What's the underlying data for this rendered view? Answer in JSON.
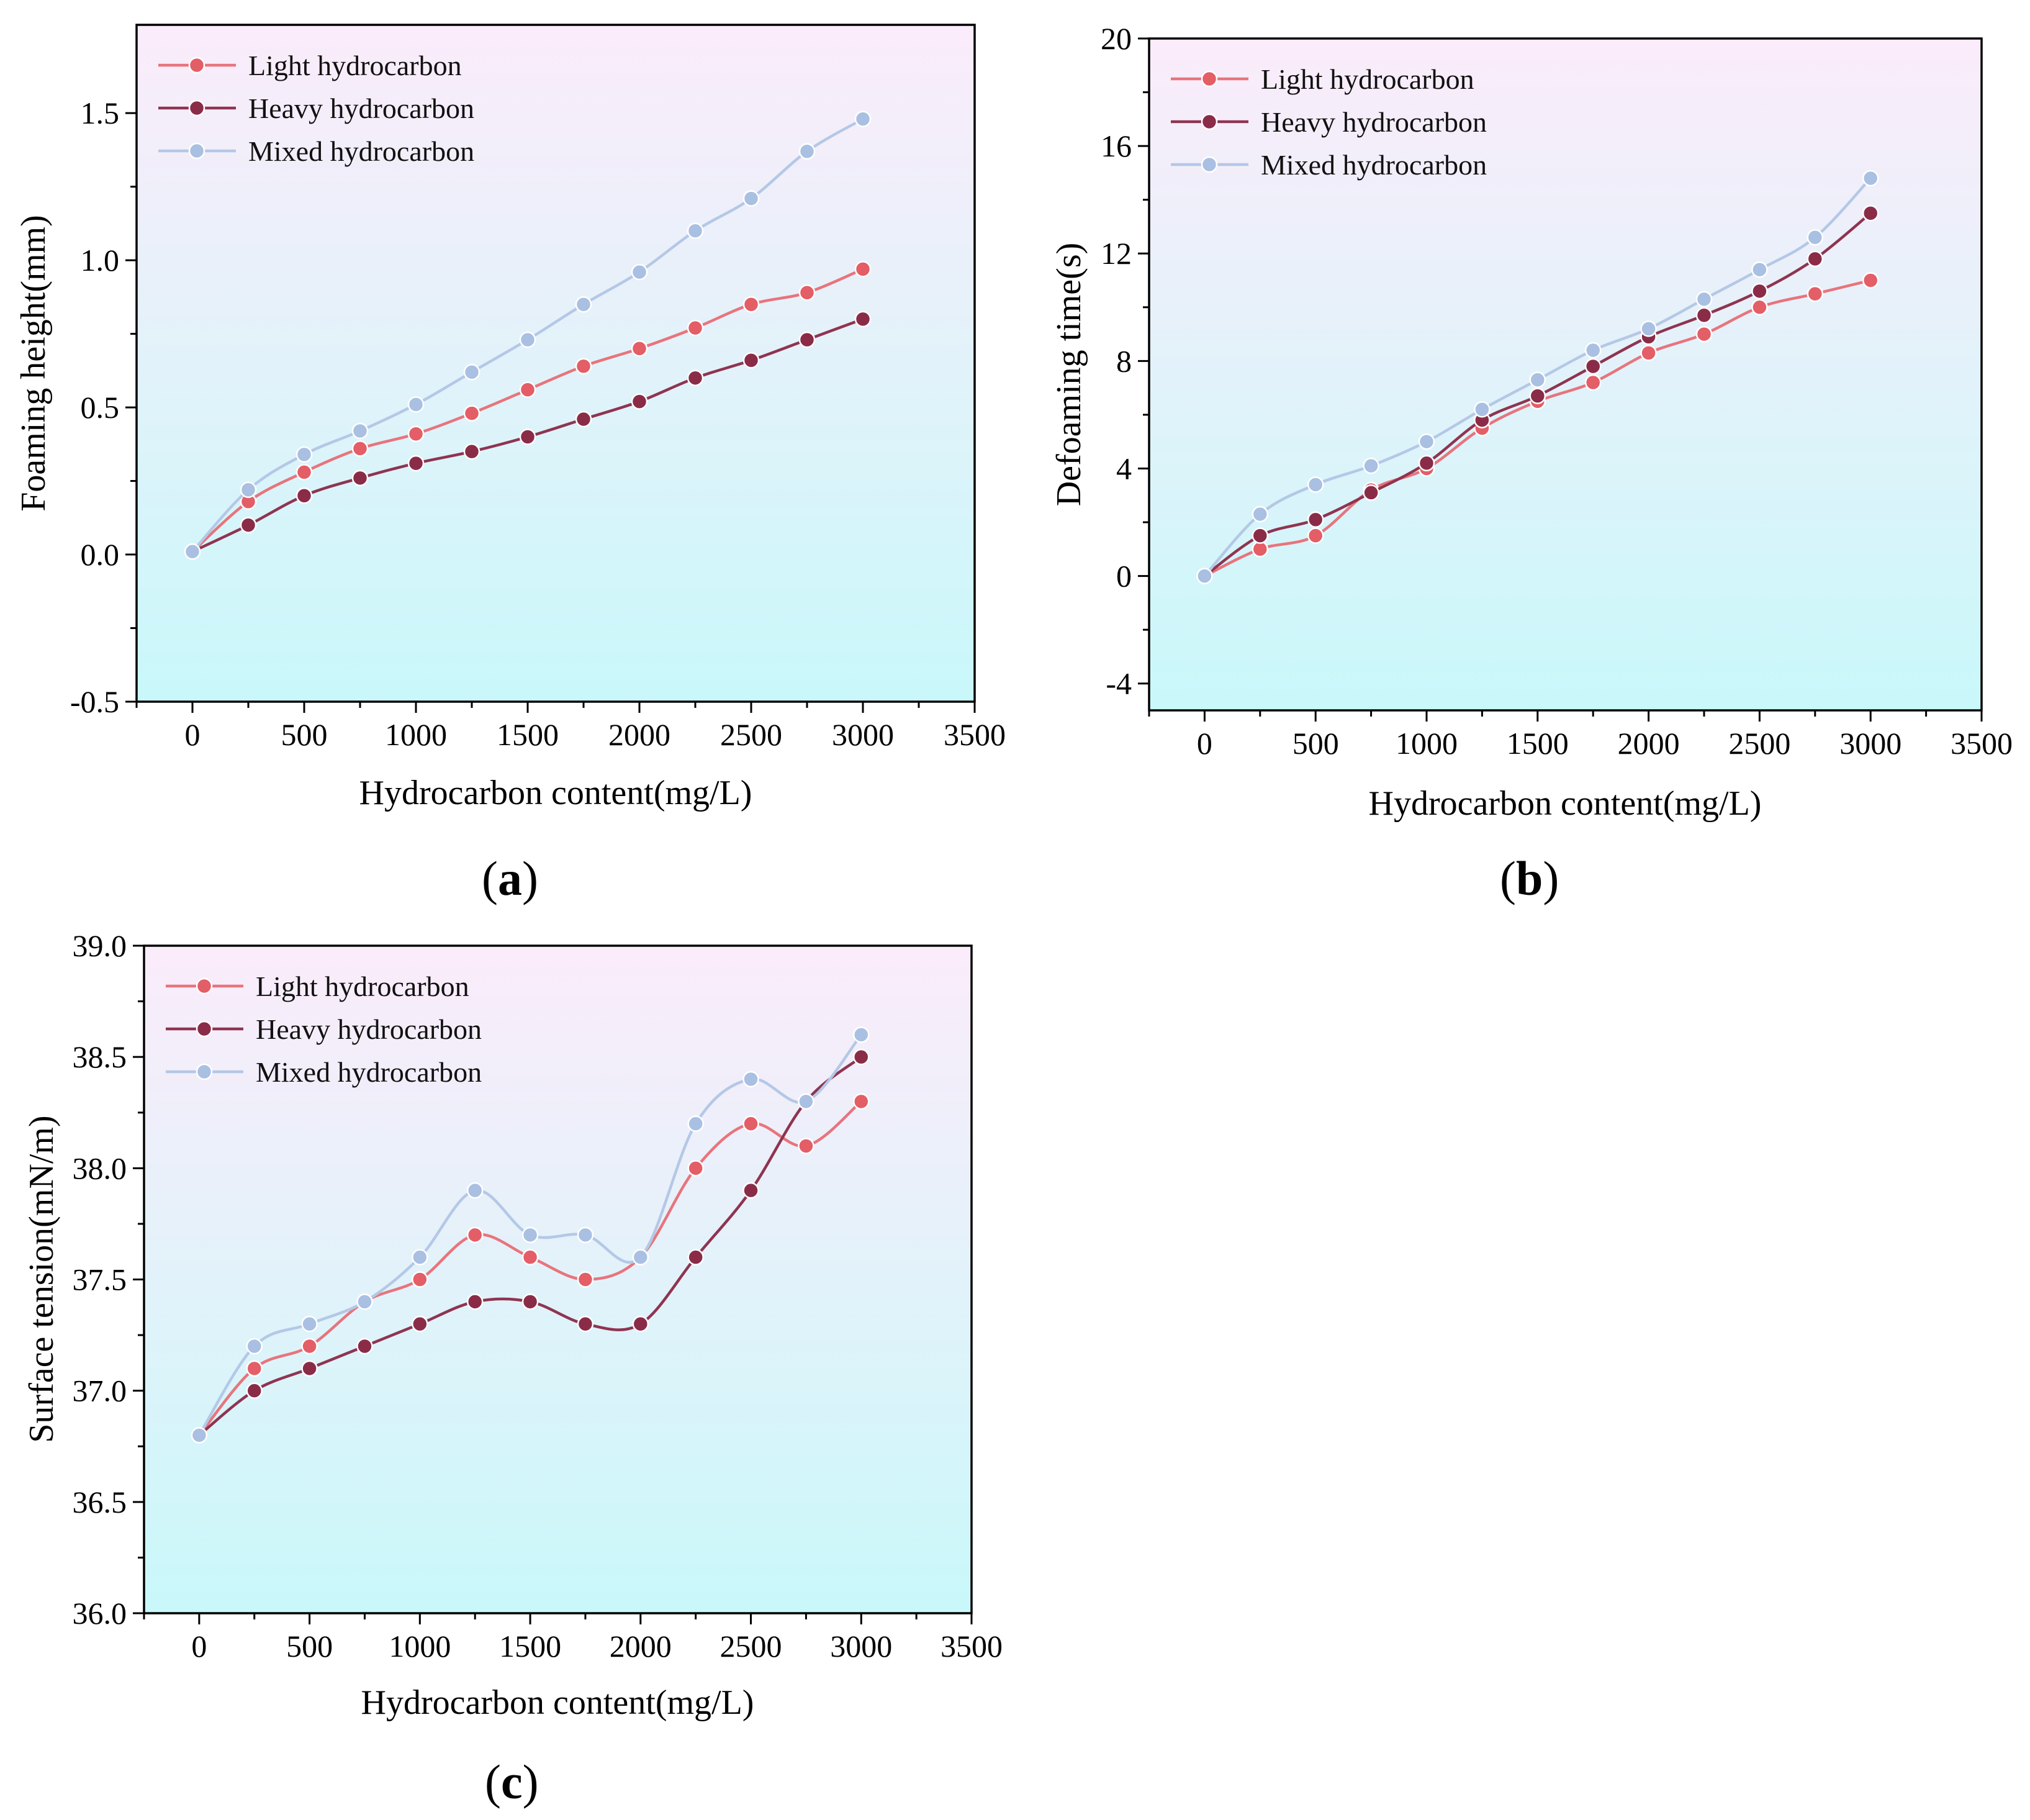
{
  "figure": {
    "panel_labels": {
      "a": "a",
      "b": "b",
      "c": "c"
    }
  },
  "series_styles": {
    "Light hydrocarbon": {
      "line": "#e8747c",
      "marker": "#e35e66"
    },
    "Heavy hydrocarbon": {
      "line": "#8f3450",
      "marker": "#8a2c48"
    },
    "Mixed hydrocarbon": {
      "line": "#b4c8e6",
      "marker": "#a9c0e2"
    }
  },
  "background": {
    "top": "#fbecfa",
    "bottom": "#c9f8fa"
  },
  "chart_data": [
    {
      "id": "a",
      "type": "line",
      "xlabel": "Hydrocarbon content(mg/L)",
      "ylabel": "Foaming height(mm)",
      "xlim": [
        -250,
        3500
      ],
      "ylim": [
        -0.5,
        1.8
      ],
      "xticks": [
        0,
        500,
        1000,
        1500,
        2000,
        2500,
        3000,
        3500
      ],
      "xtick_labels": [
        "0",
        "500",
        "1000",
        "1500",
        "2000",
        "2500",
        "3000",
        "3500"
      ],
      "yticks": [
        -0.5,
        0.0,
        0.5,
        1.0,
        1.5
      ],
      "ytick_labels": [
        "-0.5",
        "0.0",
        "0.5",
        "1.0",
        "1.5"
      ],
      "x": [
        0,
        250,
        500,
        750,
        1000,
        1250,
        1500,
        1750,
        2000,
        2250,
        2500,
        2750,
        3000
      ],
      "legend": "top-left",
      "series": [
        {
          "name": "Light hydrocarbon",
          "values": [
            0.01,
            0.18,
            0.28,
            0.36,
            0.41,
            0.48,
            0.56,
            0.64,
            0.7,
            0.77,
            0.85,
            0.89,
            0.97
          ]
        },
        {
          "name": "Heavy hydrocarbon",
          "values": [
            0.01,
            0.1,
            0.2,
            0.26,
            0.31,
            0.35,
            0.4,
            0.46,
            0.52,
            0.6,
            0.66,
            0.73,
            0.8
          ]
        },
        {
          "name": "Mixed hydrocarbon",
          "values": [
            0.01,
            0.22,
            0.34,
            0.42,
            0.51,
            0.62,
            0.73,
            0.85,
            0.96,
            1.1,
            1.21,
            1.37,
            1.48
          ]
        }
      ]
    },
    {
      "id": "b",
      "type": "line",
      "xlabel": "Hydrocarbon content(mg/L)",
      "ylabel": "Defoaming time(s)",
      "xlim": [
        -250,
        3500
      ],
      "ylim": [
        -5,
        20
      ],
      "xticks": [
        0,
        500,
        1000,
        1500,
        2000,
        2500,
        3000,
        3500
      ],
      "xtick_labels": [
        "0",
        "500",
        "1000",
        "1500",
        "2000",
        "2500",
        "3000",
        "3500"
      ],
      "yticks": [
        -4,
        0,
        4,
        8,
        12,
        16,
        20
      ],
      "ytick_labels": [
        "-4",
        "0",
        "4",
        "8",
        "12",
        "16",
        "20"
      ],
      "x": [
        0,
        250,
        500,
        750,
        1000,
        1250,
        1500,
        1750,
        2000,
        2250,
        2500,
        2750,
        3000
      ],
      "legend": "top-left",
      "series": [
        {
          "name": "Light hydrocarbon",
          "values": [
            0,
            1.0,
            1.5,
            3.2,
            4.0,
            5.5,
            6.5,
            7.2,
            8.3,
            9.0,
            10.0,
            10.5,
            11.0
          ]
        },
        {
          "name": "Heavy hydrocarbon",
          "values": [
            0,
            1.5,
            2.1,
            3.1,
            4.2,
            5.8,
            6.7,
            7.8,
            8.9,
            9.7,
            10.6,
            11.8,
            13.5
          ]
        },
        {
          "name": "Mixed hydrocarbon",
          "values": [
            0,
            2.3,
            3.4,
            4.1,
            5.0,
            6.2,
            7.3,
            8.4,
            9.2,
            10.3,
            11.4,
            12.6,
            14.8
          ]
        }
      ]
    },
    {
      "id": "c",
      "type": "line",
      "xlabel": "Hydrocarbon content(mg/L)",
      "ylabel": "Surface tension(mN/m)",
      "xlim": [
        -250,
        3500
      ],
      "ylim": [
        36.0,
        39.0
      ],
      "xticks": [
        0,
        500,
        1000,
        1500,
        2000,
        2500,
        3000,
        3500
      ],
      "xtick_labels": [
        "0",
        "500",
        "1000",
        "1500",
        "2000",
        "2500",
        "3000",
        "3500"
      ],
      "yticks": [
        36.0,
        36.5,
        37.0,
        37.5,
        38.0,
        38.5,
        39.0
      ],
      "ytick_labels": [
        "36.0",
        "36.5",
        "37.0",
        "37.5",
        "38.0",
        "38.5",
        "39.0"
      ],
      "x": [
        0,
        250,
        500,
        750,
        1000,
        1250,
        1500,
        1750,
        2000,
        2250,
        2500,
        2750,
        3000
      ],
      "legend": "top-left",
      "series": [
        {
          "name": "Light hydrocarbon",
          "values": [
            36.8,
            37.1,
            37.2,
            37.4,
            37.5,
            37.7,
            37.6,
            37.5,
            37.6,
            38.0,
            38.2,
            38.1,
            38.3
          ]
        },
        {
          "name": "Heavy hydrocarbon",
          "values": [
            36.8,
            37.0,
            37.1,
            37.2,
            37.3,
            37.4,
            37.4,
            37.3,
            37.3,
            37.6,
            37.9,
            38.3,
            38.5
          ]
        },
        {
          "name": "Mixed hydrocarbon",
          "values": [
            36.8,
            37.2,
            37.3,
            37.4,
            37.6,
            37.9,
            37.7,
            37.7,
            37.6,
            38.2,
            38.4,
            38.3,
            38.6
          ]
        }
      ]
    }
  ]
}
